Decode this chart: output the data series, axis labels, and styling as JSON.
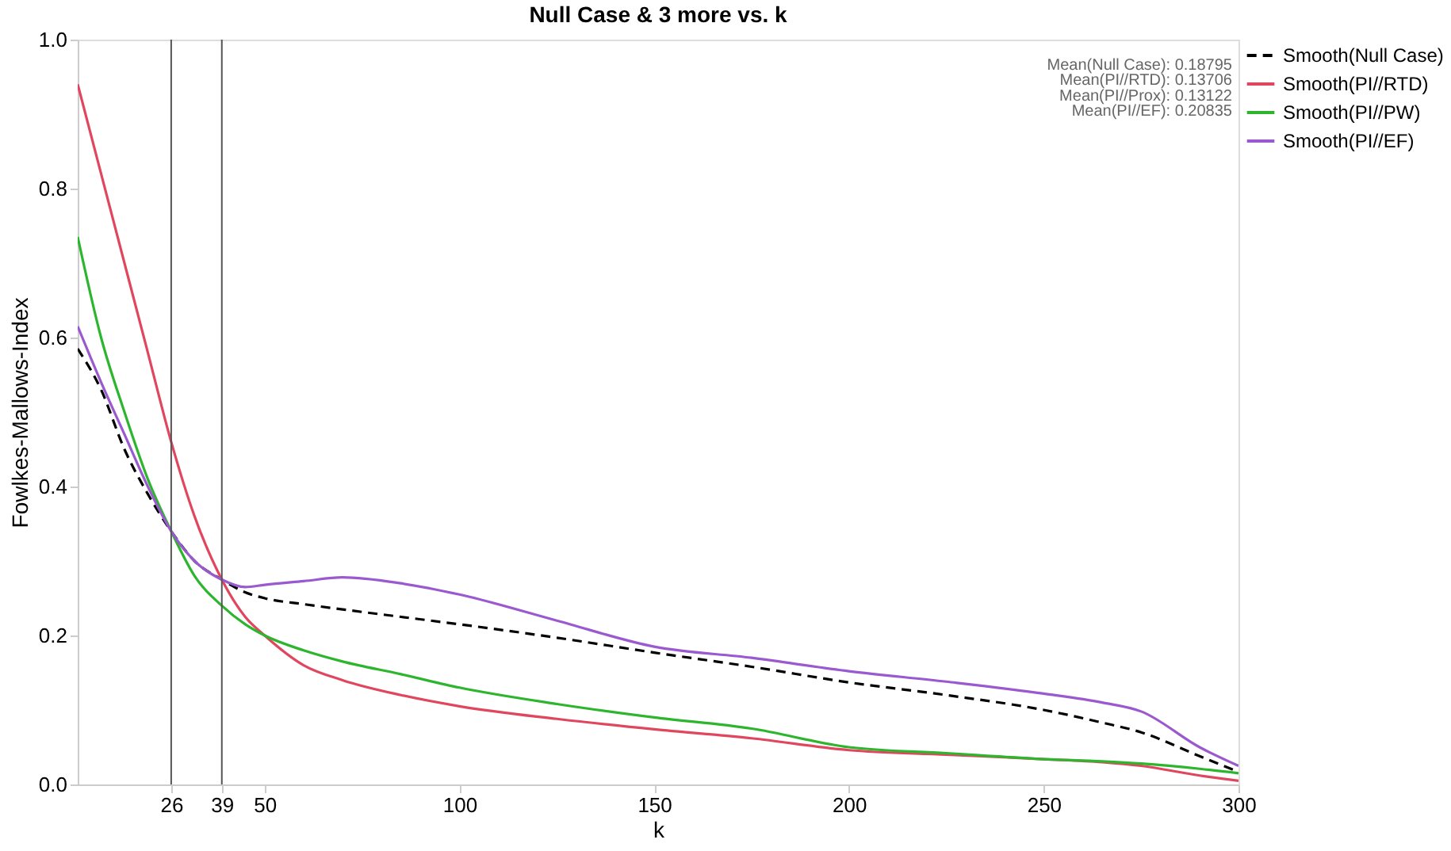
{
  "chart_data": {
    "type": "line",
    "title": "Null Case & 3 more vs. k",
    "xlabel": "k",
    "ylabel": "Fowlkes-Mallows-Index",
    "x": [
      2,
      8,
      14,
      20,
      26,
      32,
      39,
      45,
      50,
      60,
      70,
      85,
      100,
      125,
      150,
      175,
      200,
      225,
      250,
      265,
      275,
      290,
      300
    ],
    "series": [
      {
        "name": "Smooth(Null Case)",
        "color": "#000000",
        "line_style": "dashed",
        "values": [
          0.585,
          0.53,
          0.45,
          0.39,
          0.34,
          0.3,
          0.275,
          0.258,
          0.25,
          0.242,
          0.235,
          0.225,
          0.215,
          0.197,
          0.177,
          0.158,
          0.137,
          0.12,
          0.1,
          0.083,
          0.07,
          0.038,
          0.017
        ]
      },
      {
        "name": "Smooth(PI//RTD)",
        "color": "#e0475e",
        "line_style": "solid",
        "values": [
          0.94,
          0.82,
          0.7,
          0.58,
          0.46,
          0.36,
          0.275,
          0.225,
          0.2,
          0.16,
          0.14,
          0.12,
          0.105,
          0.088,
          0.074,
          0.062,
          0.046,
          0.04,
          0.034,
          0.03,
          0.025,
          0.012,
          0.005
        ]
      },
      {
        "name": "Smooth(PI//PW)",
        "color": "#2db52d",
        "line_style": "solid",
        "values": [
          0.735,
          0.6,
          0.5,
          0.41,
          0.34,
          0.28,
          0.24,
          0.215,
          0.2,
          0.18,
          0.165,
          0.148,
          0.13,
          0.108,
          0.09,
          0.075,
          0.05,
          0.042,
          0.034,
          0.031,
          0.028,
          0.021,
          0.015
        ]
      },
      {
        "name": "Smooth(PI//EF)",
        "color": "#9b59d0",
        "line_style": "solid",
        "values": [
          0.615,
          0.54,
          0.47,
          0.4,
          0.34,
          0.3,
          0.275,
          0.265,
          0.268,
          0.273,
          0.278,
          0.27,
          0.255,
          0.22,
          0.185,
          0.17,
          0.152,
          0.138,
          0.122,
          0.11,
          0.098,
          0.05,
          0.025
        ]
      }
    ],
    "xlim": [
      2,
      300
    ],
    "xticks": [
      26,
      39,
      50,
      100,
      150,
      200,
      250,
      300
    ],
    "ylim": [
      0,
      1
    ],
    "yticks": [
      {
        "value": 0,
        "label": "0.0"
      },
      {
        "value": 0.2,
        "label": "0.2"
      },
      {
        "value": 0.4,
        "label": "0.4"
      },
      {
        "value": 0.6,
        "label": "0.6"
      },
      {
        "value": 0.8,
        "label": "0.8"
      },
      {
        "value": 1,
        "label": "1.0"
      }
    ],
    "ref_lines": [
      {
        "axis": "x",
        "value": 26,
        "color": "#555555"
      },
      {
        "axis": "x",
        "value": 39,
        "color": "#555555"
      }
    ],
    "annotations": [
      "Mean(Null Case): 0.18795",
      "Mean(PI//RTD): 0.13706",
      "Mean(PI//Prox): 0.13122",
      "Mean(PI//EF): 0.20835"
    ],
    "grid": false,
    "legend": "top right",
    "marker": "none"
  }
}
